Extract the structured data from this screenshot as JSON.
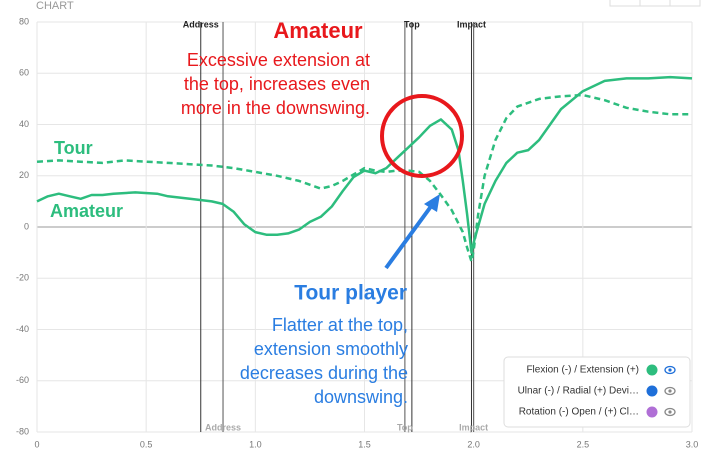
{
  "header": {
    "title": "CHART"
  },
  "chart_data": {
    "type": "line",
    "xlim": [
      0,
      3
    ],
    "xticks": [
      0,
      0.5,
      {
        "value": 1,
        "label": "1.0"
      },
      1.5,
      {
        "value": 2,
        "label": "2.0"
      },
      2.5,
      {
        "value": 3,
        "label": "3.0"
      }
    ],
    "ylim": [
      -80,
      80
    ],
    "yticks": [
      -80,
      -60,
      -40,
      -20,
      0,
      20,
      40,
      60,
      80
    ],
    "grid": true,
    "series": [
      {
        "name": "Amateur",
        "color": "#2dbd7e",
        "dash": false,
        "x": [
          0,
          0.05,
          0.1,
          0.15,
          0.2,
          0.25,
          0.3,
          0.35,
          0.45,
          0.55,
          0.6,
          0.7,
          0.8,
          0.85,
          0.9,
          0.95,
          1.0,
          1.05,
          1.1,
          1.15,
          1.2,
          1.25,
          1.3,
          1.35,
          1.4,
          1.45,
          1.5,
          1.55,
          1.6,
          1.65,
          1.7,
          1.75,
          1.8,
          1.85,
          1.9,
          1.93,
          1.95,
          1.97,
          1.99,
          2.0,
          2.02,
          2.05,
          2.1,
          2.15,
          2.2,
          2.25,
          2.3,
          2.35,
          2.4,
          2.5,
          2.6,
          2.7,
          2.8,
          2.9,
          3.0
        ],
        "values": [
          10,
          12,
          13,
          12,
          11,
          12.5,
          12.5,
          13,
          13.5,
          13,
          12,
          11,
          10,
          9,
          6,
          1,
          -2,
          -3,
          -3,
          -2.5,
          -1,
          2,
          4,
          8,
          14,
          19.5,
          22,
          21,
          23,
          27,
          31,
          35,
          39.5,
          42,
          38,
          30,
          18,
          5,
          -10,
          -6,
          0,
          9,
          18,
          25,
          29,
          30,
          34,
          40,
          46,
          53,
          57,
          58,
          58,
          58.5,
          58
        ]
      },
      {
        "name": "Tour",
        "color": "#2dbd7e",
        "dash": true,
        "x": [
          0,
          0.1,
          0.2,
          0.3,
          0.4,
          0.5,
          0.6,
          0.7,
          0.8,
          0.9,
          1.0,
          1.1,
          1.2,
          1.3,
          1.35,
          1.4,
          1.45,
          1.5,
          1.55,
          1.6,
          1.65,
          1.7,
          1.75,
          1.8,
          1.85,
          1.9,
          1.95,
          1.97,
          1.99,
          2.0,
          2.02,
          2.05,
          2.1,
          2.15,
          2.2,
          2.3,
          2.4,
          2.5,
          2.6,
          2.7,
          2.8,
          2.9,
          3.0
        ],
        "values": [
          25.5,
          26,
          25.5,
          25,
          26,
          25.5,
          25,
          24.5,
          24,
          23,
          21.5,
          20,
          18,
          15,
          16,
          18,
          20.5,
          23,
          22,
          21.5,
          22,
          22,
          21.5,
          18,
          12.5,
          6.5,
          -2,
          -8,
          -13.5,
          -9,
          4.5,
          20,
          34,
          42.5,
          47,
          50,
          51,
          51.5,
          49.5,
          46.5,
          45,
          44,
          44
        ]
      }
    ],
    "markers_top": [
      {
        "name": "Address",
        "x": 0.75
      },
      {
        "name": "Top",
        "x": 1.717
      },
      {
        "name": "Impact",
        "x": 1.99
      }
    ],
    "markers_bottom": [
      {
        "name": "Address",
        "x": 0.852
      },
      {
        "name": "Top",
        "x": 1.685
      },
      {
        "name": "Impact",
        "x": 2.0
      }
    ],
    "annotations": {
      "tour_label": "Tour",
      "amateur_label": "Amateur",
      "amateur_title": "Amateur",
      "amateur_text": [
        "Excessive extension at",
        "the top, increases even",
        "more in the downswing."
      ],
      "tour_title": "Tour player",
      "tour_text": [
        "Flatter at the top,",
        "extension smoothly",
        "decreases during the",
        "downswing."
      ]
    },
    "legend": [
      {
        "name": "Flexion (-) / Extension (+)",
        "color": "#2dbd7e"
      },
      {
        "name": "Ulnar (-) / Radial (+) Devi…",
        "color": "#1e6fd9"
      },
      {
        "name": "Rotation (-) Open / (+) Cl…",
        "color": "#b06fd6"
      }
    ]
  }
}
